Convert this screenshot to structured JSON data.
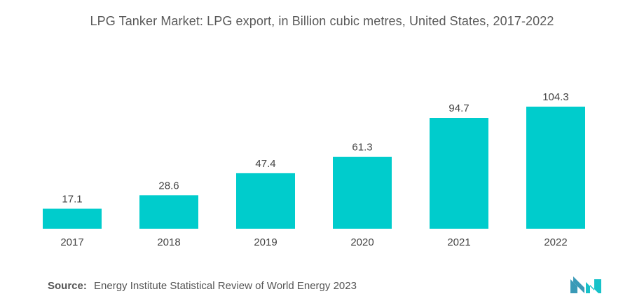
{
  "title": "LPG Tanker Market: LPG export, in Billion cubic metres,  United States, 2017-2022",
  "source": {
    "label": "Source:",
    "text": "Energy Institute Statistical Review of World Energy 2023"
  },
  "colors": {
    "bar": "#00cccc",
    "logo_left": "#3a9ab7",
    "logo_right": "#17c2c9"
  },
  "chart_data": {
    "type": "bar",
    "title": "LPG Tanker Market: LPG export, in Billion cubic metres,  United States, 2017-2022",
    "xlabel": "",
    "ylabel": "",
    "categories": [
      "2017",
      "2018",
      "2019",
      "2020",
      "2021",
      "2022"
    ],
    "values": [
      17.1,
      28.6,
      47.4,
      61.3,
      94.7,
      104.3
    ],
    "data_labels": [
      "17.1",
      "28.6",
      "47.4",
      "61.3",
      "94.7",
      "104.3"
    ],
    "ylim": [
      0,
      104.3
    ],
    "grid": false,
    "legend": "none"
  }
}
